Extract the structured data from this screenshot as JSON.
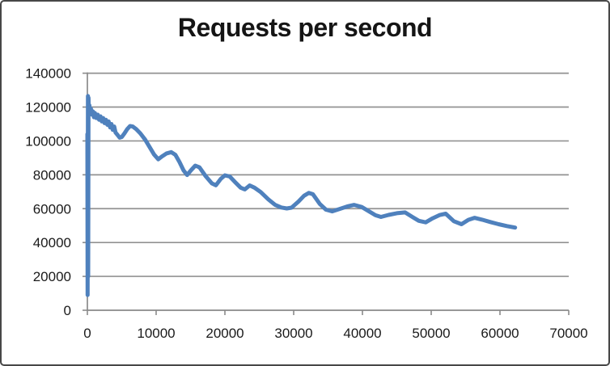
{
  "window": {
    "background": "#ffffff",
    "border_color": "#474747"
  },
  "chart_data": {
    "type": "line",
    "title": "Requests per second",
    "legend": "none",
    "grid": "horizontal-major",
    "x_axis": {
      "min": 0,
      "max": 70000,
      "step": 10000,
      "tick_labels": [
        "0",
        "10000",
        "20000",
        "30000",
        "40000",
        "50000",
        "60000",
        "70000"
      ]
    },
    "y_axis": {
      "min": 0,
      "max": 140000,
      "step": 20000,
      "tick_labels": [
        "0",
        "20000",
        "40000",
        "60000",
        "80000",
        "100000",
        "120000",
        "140000"
      ]
    },
    "colors": {
      "line": "#4F81BD",
      "gridline": "#929292",
      "axis": "#8a8a8a",
      "tick_label": "#1a1a1a",
      "title": "#151515"
    },
    "series": [
      {
        "name": "Requests per second",
        "color": "#4F81BD",
        "points": [
          [
            0,
            104000
          ],
          [
            40,
            9000
          ],
          [
            80,
            126500
          ],
          [
            120,
            20000
          ],
          [
            160,
            125500
          ],
          [
            210,
            117500
          ],
          [
            300,
            121000
          ],
          [
            400,
            117000
          ],
          [
            520,
            119000
          ],
          [
            650,
            115500
          ],
          [
            800,
            117500
          ],
          [
            950,
            114000
          ],
          [
            1100,
            116500
          ],
          [
            1300,
            113500
          ],
          [
            1500,
            115500
          ],
          [
            1700,
            112500
          ],
          [
            1900,
            114500
          ],
          [
            2100,
            111500
          ],
          [
            2300,
            113500
          ],
          [
            2500,
            110500
          ],
          [
            2700,
            112500
          ],
          [
            2900,
            109500
          ],
          [
            3100,
            111500
          ],
          [
            3300,
            108000
          ],
          [
            3500,
            110000
          ],
          [
            3700,
            106500
          ],
          [
            3900,
            108500
          ],
          [
            4100,
            105000
          ],
          [
            4400,
            103500
          ],
          [
            4700,
            101900
          ],
          [
            5000,
            102300
          ],
          [
            5400,
            104500
          ],
          [
            5800,
            107000
          ],
          [
            6200,
            108800
          ],
          [
            6600,
            108500
          ],
          [
            7100,
            107000
          ],
          [
            7700,
            104500
          ],
          [
            8400,
            100800
          ],
          [
            9100,
            96000
          ],
          [
            9700,
            92000
          ],
          [
            10300,
            89200
          ],
          [
            10900,
            91000
          ],
          [
            11500,
            92600
          ],
          [
            12200,
            93400
          ],
          [
            12800,
            91800
          ],
          [
            13400,
            87500
          ],
          [
            14000,
            82500
          ],
          [
            14500,
            79900
          ],
          [
            15100,
            82800
          ],
          [
            15700,
            85400
          ],
          [
            16300,
            84400
          ],
          [
            17200,
            79200
          ],
          [
            18100,
            74900
          ],
          [
            18700,
            73800
          ],
          [
            19400,
            77600
          ],
          [
            20000,
            79700
          ],
          [
            20700,
            79000
          ],
          [
            21500,
            75600
          ],
          [
            22300,
            72400
          ],
          [
            22900,
            71400
          ],
          [
            23600,
            73700
          ],
          [
            24300,
            72400
          ],
          [
            25200,
            69800
          ],
          [
            26300,
            65500
          ],
          [
            27300,
            62200
          ],
          [
            28200,
            60700
          ],
          [
            29000,
            60100
          ],
          [
            29700,
            60600
          ],
          [
            30700,
            64200
          ],
          [
            31500,
            67600
          ],
          [
            32200,
            69300
          ],
          [
            32800,
            68500
          ],
          [
            33800,
            62800
          ],
          [
            34700,
            59400
          ],
          [
            35600,
            58400
          ],
          [
            36600,
            59700
          ],
          [
            37800,
            61300
          ],
          [
            38800,
            62200
          ],
          [
            39900,
            61000
          ],
          [
            41000,
            58300
          ],
          [
            41900,
            56100
          ],
          [
            42700,
            55100
          ],
          [
            43800,
            56300
          ],
          [
            45000,
            57300
          ],
          [
            46200,
            57800
          ],
          [
            47300,
            55000
          ],
          [
            48200,
            52800
          ],
          [
            49200,
            51900
          ],
          [
            50200,
            54300
          ],
          [
            51200,
            56200
          ],
          [
            52100,
            57000
          ],
          [
            53300,
            52600
          ],
          [
            54400,
            50800
          ],
          [
            55400,
            53400
          ],
          [
            56300,
            54600
          ],
          [
            57400,
            53500
          ],
          [
            58600,
            52100
          ],
          [
            59800,
            50800
          ],
          [
            61000,
            49700
          ],
          [
            62200,
            48800
          ]
        ]
      }
    ]
  }
}
